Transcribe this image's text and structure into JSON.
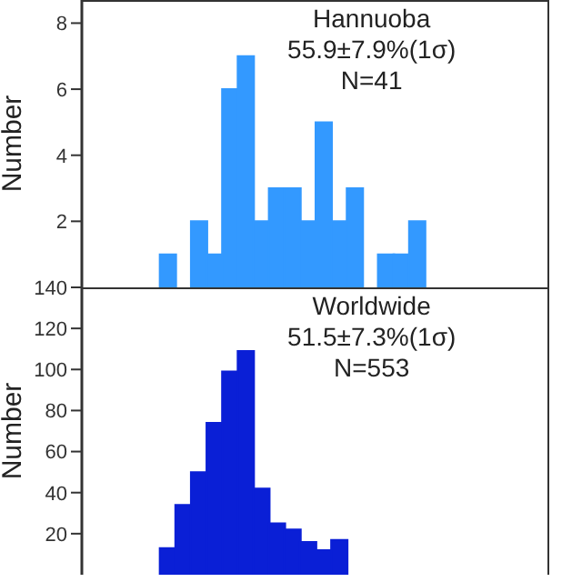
{
  "chart_data": [
    {
      "type": "bar",
      "categories": [
        null,
        null,
        null,
        null,
        null,
        null,
        null,
        null,
        null,
        null,
        null,
        null,
        null,
        null,
        null,
        null,
        null,
        null,
        null,
        null,
        null,
        null,
        null,
        null,
        null,
        null,
        null,
        null,
        null,
        null
      ],
      "values": [
        null,
        null,
        null,
        null,
        null,
        1,
        0,
        2,
        1,
        6,
        7,
        2,
        3,
        3,
        2,
        5,
        2,
        3,
        0,
        1,
        1,
        2,
        null,
        null,
        null,
        null,
        null,
        null,
        null,
        null
      ],
      "color": "#3399ff",
      "ylabel": "Number",
      "ylim": [
        0,
        8.7
      ],
      "yticks": [
        2,
        4,
        6,
        8
      ],
      "tick_labels": "y",
      "annotations": [
        "Hannuoba",
        "55.9±7.9%(1σ)",
        "N=41"
      ]
    },
    {
      "type": "bar",
      "categories": [
        null,
        null,
        null,
        null,
        null,
        null,
        null,
        null,
        null,
        null,
        null,
        null,
        null,
        null,
        null,
        null,
        null,
        null,
        null,
        null,
        null,
        null,
        null,
        null,
        null,
        null,
        null,
        null,
        null,
        null
      ],
      "values": [
        null,
        null,
        null,
        null,
        null,
        13,
        34,
        50,
        74,
        99,
        109,
        42,
        25,
        22,
        16,
        12,
        17,
        null,
        null,
        null,
        null,
        null,
        null,
        null,
        null,
        null,
        null,
        null,
        null,
        null
      ],
      "color": "#0a1fd6",
      "ylabel": "Number",
      "ylim": [
        0,
        140
      ],
      "yticks": [
        20,
        40,
        60,
        80,
        100,
        120,
        140
      ],
      "tick_labels": "y",
      "annotations": [
        "Worldwide",
        "51.5±7.3%(1σ)",
        "N=553"
      ]
    }
  ]
}
